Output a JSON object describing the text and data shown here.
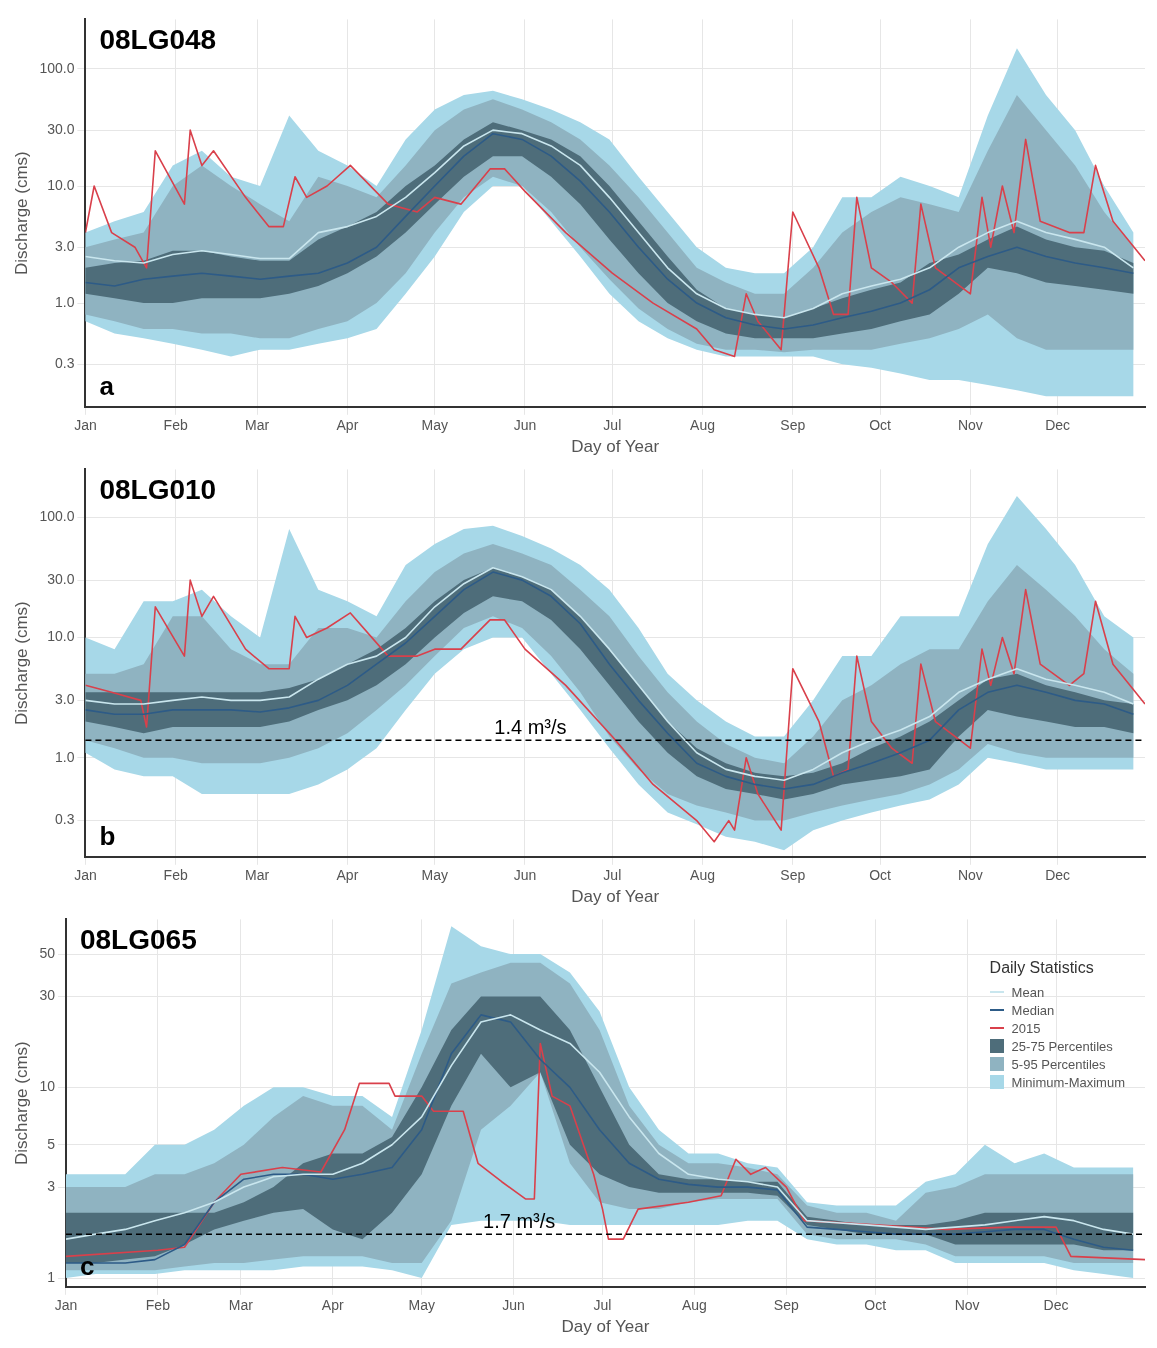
{
  "chart_data": [
    {
      "type": "line",
      "title": "08LG048",
      "xlabel": "Day of Year",
      "ylabel": "Discharge (cms)",
      "annotations": [
        "a"
      ],
      "log": "y",
      "grid": true,
      "ylim": [
        0.13,
        265
      ],
      "yticks": [
        {
          "value": 0.3,
          "label": "0.3"
        },
        {
          "value": 1,
          "label": "1.0"
        },
        {
          "value": 3,
          "label": "3.0"
        },
        {
          "value": 10,
          "label": "10.0"
        },
        {
          "value": 30,
          "label": "30.0"
        },
        {
          "value": 100,
          "label": "100.0"
        }
      ],
      "xlim": [
        "--01-01",
        "--12-31"
      ],
      "xticks": [
        {
          "value": "--01-01",
          "label": "Jan"
        },
        {
          "value": "--02-01",
          "label": "Feb"
        },
        {
          "value": "--03-01",
          "label": "Mar"
        },
        {
          "value": "--04-01",
          "label": "Apr"
        },
        {
          "value": "--05-01",
          "label": "May"
        },
        {
          "value": "--06-01",
          "label": "Jun"
        },
        {
          "value": "--07-01",
          "label": "Jul"
        },
        {
          "value": "--08-01",
          "label": "Aug"
        },
        {
          "value": "--09-01",
          "label": "Sep"
        },
        {
          "value": "--10-01",
          "label": "Oct"
        },
        {
          "value": "--11-01",
          "label": "Nov"
        },
        {
          "value": "--12-01",
          "label": "Dec"
        }
      ],
      "x": [
        "--01-01",
        "--01-11",
        "--01-21",
        "--01-31",
        "--02-10",
        "--02-20",
        "--03-02",
        "--03-12",
        "--03-22",
        "--04-01",
        "--04-11",
        "--04-21",
        "--05-01",
        "--05-11",
        "--05-21",
        "--05-31",
        "--06-10",
        "--06-20",
        "--06-30",
        "--07-10",
        "--07-20",
        "--07-30",
        "--08-09",
        "--08-19",
        "--08-29",
        "--09-08",
        "--09-18",
        "--09-28",
        "--10-08",
        "--10-18",
        "--10-28",
        "--11-07",
        "--11-17",
        "--11-27",
        "--12-07",
        "--12-17",
        "--12-27"
      ],
      "series": [
        {
          "type": "line",
          "color": "#c9e6ee",
          "values": [
            2.5,
            2.3,
            2.2,
            2.6,
            2.8,
            2.6,
            2.4,
            2.4,
            4,
            4.5,
            5.5,
            8,
            13,
            22,
            30,
            28,
            22,
            15,
            8,
            4,
            2,
            1.2,
            0.9,
            0.8,
            0.75,
            0.9,
            1.2,
            1.4,
            1.6,
            2,
            3,
            4,
            5,
            4,
            3.5,
            3,
            2
          ]
        },
        {
          "type": "line",
          "color": "#2d5b87",
          "values": [
            1.5,
            1.4,
            1.6,
            1.7,
            1.8,
            1.7,
            1.6,
            1.7,
            1.8,
            2.2,
            3,
            5.5,
            10,
            18,
            28,
            25,
            18,
            11,
            6,
            3,
            1.6,
            1,
            0.75,
            0.65,
            0.6,
            0.65,
            0.75,
            0.85,
            1,
            1.3,
            2,
            2.5,
            3,
            2.5,
            2.2,
            2,
            1.8
          ]
        },
        {
          "type": "line",
          "color": "#d9404b",
          "x": [
            "--01-01",
            "--01-04",
            "--01-10",
            "--01-18",
            "--01-22",
            "--01-25",
            "--02-04",
            "--02-06",
            "--02-10",
            "--02-14",
            "--02-25",
            "--03-05",
            "--03-10",
            "--03-14",
            "--03-18",
            "--03-25",
            "--04-02",
            "--04-15",
            "--04-25",
            "--05-01",
            "--05-10",
            "--05-20",
            "--05-25",
            "--06-01",
            "--06-15",
            "--07-01",
            "--07-15",
            "--07-30",
            "--08-05",
            "--08-12",
            "--08-16",
            "--08-20",
            "--08-28",
            "--09-01",
            "--09-10",
            "--09-15",
            "--09-20",
            "--09-23",
            "--09-28",
            "--10-05",
            "--10-12",
            "--10-15",
            "--10-20",
            "--11-01",
            "--11-05",
            "--11-08",
            "--11-12",
            "--11-16",
            "--11-20",
            "--11-25",
            "--12-05",
            "--12-10",
            "--12-14",
            "--12-20",
            "--12-31"
          ],
          "values": [
            4,
            10,
            4,
            3,
            2,
            20,
            7,
            30,
            15,
            20,
            8,
            4.5,
            4.5,
            12,
            8,
            10,
            15,
            7,
            6,
            8,
            7,
            14,
            14,
            9,
            4,
            1.8,
            1,
            0.6,
            0.4,
            0.35,
            1.2,
            0.7,
            0.4,
            6,
            2,
            0.8,
            0.8,
            8,
            2,
            1.5,
            1,
            7,
            2,
            1.2,
            8,
            3,
            10,
            4,
            25,
            5,
            4,
            4,
            15,
            5,
            2.3
          ]
        },
        {
          "type": "area",
          "color": "#4e6d7a",
          "values": [
            null,
            null,
            null,
            null,
            null,
            null,
            null,
            null,
            null,
            null,
            null,
            null,
            null,
            null,
            null,
            null,
            null,
            null,
            null,
            null,
            null,
            null,
            null,
            null,
            null,
            null,
            null,
            null,
            null,
            null,
            null,
            null,
            null,
            null,
            null,
            null,
            null
          ],
          "upper": [
            2,
            2.2,
            2.3,
            2.8,
            2.8,
            2.5,
            2.3,
            2.3,
            3.5,
            4.5,
            6,
            10,
            15,
            25,
            35,
            30,
            25,
            18,
            10,
            5,
            2.5,
            1.3,
            0.9,
            0.8,
            0.75,
            0.9,
            1.1,
            1.3,
            1.5,
            2.2,
            2.6,
            3.5,
            4.5,
            3.5,
            3,
            2.8,
            2.2
          ],
          "lower": [
            1.2,
            1.1,
            1,
            1,
            1.1,
            1.1,
            1.1,
            1.2,
            1.4,
            1.8,
            2.5,
            4,
            7,
            12,
            18,
            18,
            12,
            7,
            3.5,
            1.8,
            1,
            0.7,
            0.55,
            0.5,
            0.5,
            0.5,
            0.55,
            0.6,
            0.7,
            0.8,
            1.2,
            2,
            1.8,
            1.5,
            1.4,
            1.3,
            1.2
          ]
        },
        {
          "type": "area",
          "color": "#8fb3c1",
          "values": [
            null,
            null,
            null,
            null,
            null,
            null,
            null,
            null,
            null,
            null,
            null,
            null,
            null,
            null,
            null,
            null,
            null,
            null,
            null,
            null,
            null,
            null,
            null,
            null,
            null,
            null,
            null,
            null,
            null,
            null,
            null,
            null,
            null,
            null,
            null,
            null,
            null
          ],
          "upper": [
            3,
            3.5,
            4,
            10,
            15,
            10,
            7,
            5,
            12,
            10,
            8,
            15,
            30,
            45,
            55,
            45,
            35,
            25,
            15,
            8,
            4,
            2,
            1.5,
            1.2,
            1.2,
            2,
            4,
            6,
            8,
            7,
            6,
            20,
            60,
            30,
            15,
            6,
            3
          ],
          "lower": [
            0.8,
            0.7,
            0.6,
            0.6,
            0.55,
            0.55,
            0.5,
            0.5,
            0.6,
            0.7,
            1,
            1.8,
            4,
            8,
            12,
            10,
            6,
            3,
            1.6,
            0.9,
            0.6,
            0.45,
            0.4,
            0.4,
            0.38,
            0.4,
            0.4,
            0.4,
            0.45,
            0.5,
            0.6,
            0.8,
            0.5,
            0.4,
            0.4,
            0.4,
            0.4
          ]
        },
        {
          "type": "area",
          "color": "#a7d8e8",
          "values": [
            null,
            null,
            null,
            null,
            null,
            null,
            null,
            null,
            null,
            null,
            null,
            null,
            null,
            null,
            null,
            null,
            null,
            null,
            null,
            null,
            null,
            null,
            null,
            null,
            null,
            null,
            null,
            null,
            null,
            null,
            null,
            null,
            null,
            null,
            null,
            null,
            null
          ],
          "upper": [
            4,
            5,
            6,
            15,
            20,
            12,
            10,
            40,
            20,
            15,
            10,
            25,
            45,
            60,
            65,
            55,
            45,
            35,
            25,
            12,
            6,
            3,
            2,
            1.8,
            1.8,
            3,
            8,
            8,
            12,
            10,
            8,
            40,
            150,
            60,
            30,
            10,
            4
          ],
          "lower": [
            0.7,
            0.55,
            0.5,
            0.45,
            0.4,
            0.35,
            0.4,
            0.4,
            0.45,
            0.5,
            0.6,
            1.2,
            2.5,
            6,
            10,
            10,
            5,
            2.5,
            1.2,
            0.7,
            0.5,
            0.4,
            0.35,
            0.35,
            0.35,
            0.35,
            0.3,
            0.28,
            0.25,
            0.22,
            0.22,
            0.2,
            0.18,
            0.16,
            0.16,
            0.16,
            0.16
          ]
        }
      ]
    },
    {
      "type": "line",
      "title": "08LG010",
      "xlabel": "Day of Year",
      "ylabel": "Discharge (cms)",
      "annotations": [
        "b"
      ],
      "log": "y",
      "grid": true,
      "ylim": [
        0.15,
        250
      ],
      "yticks": [
        {
          "value": 0.3,
          "label": "0.3"
        },
        {
          "value": 1,
          "label": "1.0"
        },
        {
          "value": 3,
          "label": "3.0"
        },
        {
          "value": 10,
          "label": "10.0"
        },
        {
          "value": 30,
          "label": "30.0"
        },
        {
          "value": 100,
          "label": "100.0"
        }
      ],
      "xlim": [
        "--01-01",
        "--12-31"
      ],
      "xticks": [
        {
          "value": "--01-01",
          "label": "Jan"
        },
        {
          "value": "--02-01",
          "label": "Feb"
        },
        {
          "value": "--03-01",
          "label": "Mar"
        },
        {
          "value": "--04-01",
          "label": "Apr"
        },
        {
          "value": "--05-01",
          "label": "May"
        },
        {
          "value": "--06-01",
          "label": "Jun"
        },
        {
          "value": "--07-01",
          "label": "Jul"
        },
        {
          "value": "--08-01",
          "label": "Aug"
        },
        {
          "value": "--09-01",
          "label": "Sep"
        },
        {
          "value": "--10-01",
          "label": "Oct"
        },
        {
          "value": "--11-01",
          "label": "Nov"
        },
        {
          "value": "--12-01",
          "label": "Dec"
        }
      ],
      "ref_lines": [
        {
          "axis": "y",
          "value": 1.4,
          "label": "1.4 m³/s",
          "color": "#000000",
          "line_style": "dashed"
        }
      ],
      "x": [
        "--01-01",
        "--01-11",
        "--01-21",
        "--01-31",
        "--02-10",
        "--02-20",
        "--03-02",
        "--03-12",
        "--03-22",
        "--04-01",
        "--04-11",
        "--04-21",
        "--05-01",
        "--05-11",
        "--05-21",
        "--05-31",
        "--06-10",
        "--06-20",
        "--06-30",
        "--07-10",
        "--07-20",
        "--07-30",
        "--08-09",
        "--08-19",
        "--08-29",
        "--09-08",
        "--09-18",
        "--09-28",
        "--10-08",
        "--10-18",
        "--10-28",
        "--11-07",
        "--11-17",
        "--11-27",
        "--12-07",
        "--12-17",
        "--12-27"
      ],
      "series": [
        {
          "type": "line",
          "color": "#c9e6ee",
          "values": [
            3,
            2.8,
            2.8,
            3,
            3.2,
            3,
            3,
            3.2,
            4.5,
            6,
            7,
            10,
            18,
            28,
            38,
            32,
            25,
            15,
            8,
            4,
            2,
            1.1,
            0.8,
            0.7,
            0.65,
            0.8,
            1.1,
            1.4,
            1.7,
            2.2,
            3.5,
            4.5,
            5.5,
            4.5,
            4,
            3.5,
            2.8
          ]
        },
        {
          "type": "line",
          "color": "#2d5b87",
          "values": [
            2.5,
            2.3,
            2.3,
            2.5,
            2.5,
            2.5,
            2.4,
            2.6,
            3,
            4,
            6,
            9,
            15,
            25,
            35,
            30,
            22,
            13,
            6,
            3,
            1.6,
            0.9,
            0.7,
            0.6,
            0.55,
            0.6,
            0.75,
            0.9,
            1.1,
            1.4,
            2.5,
            3.5,
            4,
            3.5,
            3,
            2.8,
            2.3
          ]
        },
        {
          "type": "line",
          "color": "#d9404b",
          "x": [
            "--01-01",
            "--01-10",
            "--01-20",
            "--01-22",
            "--01-25",
            "--02-04",
            "--02-06",
            "--02-10",
            "--02-14",
            "--02-25",
            "--03-05",
            "--03-12",
            "--03-14",
            "--03-18",
            "--03-25",
            "--04-02",
            "--04-15",
            "--04-25",
            "--05-01",
            "--05-10",
            "--05-20",
            "--05-25",
            "--06-01",
            "--06-15",
            "--07-01",
            "--07-15",
            "--07-30",
            "--08-05",
            "--08-10",
            "--08-12",
            "--08-16",
            "--08-20",
            "--08-28",
            "--09-01",
            "--09-10",
            "--09-15",
            "--09-20",
            "--09-23",
            "--09-28",
            "--10-05",
            "--10-12",
            "--10-15",
            "--10-20",
            "--11-01",
            "--11-05",
            "--11-08",
            "--11-12",
            "--11-16",
            "--11-20",
            "--11-25",
            "--12-05",
            "--12-10",
            "--12-14",
            "--12-20",
            "--12-31"
          ],
          "values": [
            4,
            3.5,
            3,
            1.8,
            18,
            7,
            30,
            15,
            22,
            8,
            5.5,
            5.5,
            15,
            10,
            12,
            16,
            7,
            7,
            8,
            8,
            14,
            14,
            8,
            4,
            1.5,
            0.6,
            0.3,
            0.2,
            0.3,
            0.25,
            1,
            0.5,
            0.25,
            5.5,
            2,
            0.7,
            0.8,
            7,
            2,
            1.2,
            0.9,
            6,
            2,
            1.2,
            8,
            4,
            10,
            5,
            25,
            6,
            4,
            5,
            20,
            6,
            2.8
          ]
        },
        {
          "type": "area",
          "color": "#4e6d7a",
          "values": [
            null,
            null,
            null,
            null,
            null,
            null,
            null,
            null,
            null,
            null,
            null,
            null,
            null,
            null,
            null,
            null,
            null,
            null,
            null,
            null,
            null,
            null,
            null,
            null,
            null,
            null,
            null,
            null,
            null,
            null,
            null,
            null,
            null,
            null,
            null,
            null,
            null
          ],
          "upper": [
            3.5,
            3.5,
            3.5,
            3.5,
            3.5,
            3.5,
            3.5,
            3.8,
            4.5,
            6,
            8,
            12,
            20,
            30,
            38,
            32,
            25,
            15,
            8,
            4,
            2,
            1.2,
            0.9,
            0.75,
            0.7,
            0.75,
            0.9,
            1.2,
            1.5,
            2,
            3,
            4.5,
            5,
            4,
            3.5,
            3,
            2.8
          ],
          "lower": [
            2,
            1.8,
            1.6,
            1.8,
            1.8,
            1.8,
            1.8,
            2,
            2.5,
            3,
            4,
            6,
            10,
            16,
            22,
            20,
            14,
            8,
            4,
            2,
            1.1,
            0.7,
            0.55,
            0.5,
            0.45,
            0.5,
            0.6,
            0.65,
            0.7,
            0.8,
            1.5,
            2.5,
            2.2,
            2,
            1.8,
            1.8,
            1.6
          ]
        },
        {
          "type": "area",
          "color": "#8fb3c1",
          "values": [
            null,
            null,
            null,
            null,
            null,
            null,
            null,
            null,
            null,
            null,
            null,
            null,
            null,
            null,
            null,
            null,
            null,
            null,
            null,
            null,
            null,
            null,
            null,
            null,
            null,
            null,
            null,
            null,
            null,
            null,
            null,
            null,
            null,
            null,
            null,
            null,
            null
          ],
          "upper": [
            5,
            5,
            6,
            15,
            15,
            8,
            6,
            6,
            12,
            12,
            10,
            20,
            35,
            50,
            60,
            50,
            40,
            25,
            15,
            7,
            3.5,
            2,
            1.3,
            1,
            0.9,
            1.5,
            3,
            4,
            6,
            8,
            8,
            20,
            40,
            25,
            15,
            8,
            5
          ],
          "lower": [
            1.4,
            1.2,
            1,
            1,
            0.9,
            0.9,
            0.9,
            1,
            1.2,
            1.6,
            2.5,
            4,
            7,
            12,
            15,
            12,
            7,
            3.5,
            1.5,
            0.8,
            0.5,
            0.4,
            0.35,
            0.3,
            0.3,
            0.35,
            0.4,
            0.45,
            0.5,
            0.6,
            0.8,
            1.3,
            1.1,
            1,
            1,
            1,
            1
          ]
        },
        {
          "type": "area",
          "color": "#a7d8e8",
          "values": [
            null,
            null,
            null,
            null,
            null,
            null,
            null,
            null,
            null,
            null,
            null,
            null,
            null,
            null,
            null,
            null,
            null,
            null,
            null,
            null,
            null,
            null,
            null,
            null,
            null,
            null,
            null,
            null,
            null,
            null,
            null,
            null,
            null,
            null,
            null,
            null,
            null
          ],
          "upper": [
            10,
            8,
            20,
            20,
            25,
            15,
            10,
            80,
            25,
            20,
            15,
            40,
            60,
            80,
            85,
            70,
            55,
            40,
            25,
            12,
            5,
            3,
            2,
            1.5,
            1.5,
            3,
            7,
            7,
            15,
            15,
            15,
            60,
            150,
            80,
            40,
            15,
            10
          ],
          "lower": [
            1.1,
            0.8,
            0.7,
            0.7,
            0.5,
            0.5,
            0.5,
            0.5,
            0.6,
            0.8,
            1.2,
            2.5,
            5,
            8,
            10,
            10,
            5,
            2.5,
            1.2,
            0.6,
            0.35,
            0.28,
            0.22,
            0.2,
            0.17,
            0.25,
            0.3,
            0.35,
            0.4,
            0.45,
            0.6,
            1,
            0.9,
            0.8,
            0.8,
            0.8,
            0.8
          ]
        }
      ]
    },
    {
      "type": "line",
      "title": "08LG065",
      "xlabel": "Day of Year",
      "ylabel": "Discharge (cms)",
      "annotations": [
        "c"
      ],
      "log": "y",
      "grid": true,
      "ylim": [
        0.9,
        76
      ],
      "yticks": [
        1,
        3,
        5,
        10,
        30,
        50
      ],
      "xlim": [
        "--01-01",
        "--12-31"
      ],
      "xticks": [
        {
          "value": "--01-01",
          "label": "Jan"
        },
        {
          "value": "--02-01",
          "label": "Feb"
        },
        {
          "value": "--03-01",
          "label": "Mar"
        },
        {
          "value": "--04-01",
          "label": "Apr"
        },
        {
          "value": "--05-01",
          "label": "May"
        },
        {
          "value": "--06-01",
          "label": "Jun"
        },
        {
          "value": "--07-01",
          "label": "Jul"
        },
        {
          "value": "--08-01",
          "label": "Aug"
        },
        {
          "value": "--09-01",
          "label": "Sep"
        },
        {
          "value": "--10-01",
          "label": "Oct"
        },
        {
          "value": "--11-01",
          "label": "Nov"
        },
        {
          "value": "--12-01",
          "label": "Dec"
        }
      ],
      "ref_lines": [
        {
          "axis": "y",
          "value": 1.7,
          "label": "1.7 m³/s",
          "color": "#000000",
          "line_style": "dashed"
        }
      ],
      "legend": "top right",
      "legend_title": "Daily Statistics",
      "x": [
        "--01-01",
        "--01-11",
        "--01-21",
        "--01-31",
        "--02-10",
        "--02-20",
        "--03-02",
        "--03-12",
        "--03-22",
        "--04-01",
        "--04-11",
        "--04-21",
        "--05-01",
        "--05-11",
        "--05-21",
        "--05-31",
        "--06-10",
        "--06-20",
        "--06-30",
        "--07-10",
        "--07-20",
        "--07-30",
        "--08-09",
        "--08-19",
        "--08-29",
        "--09-08",
        "--09-18",
        "--09-28",
        "--10-08",
        "--10-18",
        "--10-28",
        "--11-07",
        "--11-17",
        "--11-27",
        "--12-07",
        "--12-17",
        "--12-27"
      ],
      "series": [
        {
          "name": "Mean",
          "type": "line",
          "color": "#c9e6ee",
          "values": [
            1.6,
            1.7,
            1.8,
            2,
            2.2,
            2.5,
            3,
            3.4,
            3.5,
            3.5,
            4,
            5,
            7,
            13,
            22,
            24,
            20,
            17,
            12,
            7,
            4.5,
            3.5,
            3.3,
            3.2,
            3,
            2,
            1.95,
            1.9,
            1.85,
            1.8,
            1.85,
            1.9,
            2,
            2.1,
            2,
            1.8,
            1.7
          ]
        },
        {
          "name": "Median",
          "type": "line",
          "color": "#2d5b87",
          "values": [
            1.2,
            1.2,
            1.2,
            1.25,
            1.5,
            2.5,
            3.3,
            3.5,
            3.5,
            3.3,
            3.5,
            3.8,
            6,
            15,
            24,
            22,
            14,
            10,
            6,
            4,
            3.3,
            3.1,
            3,
            3,
            2.9,
            1.85,
            1.8,
            1.75,
            1.7,
            1.7,
            1.7,
            1.75,
            1.8,
            1.8,
            1.6,
            1.45,
            1.4
          ]
        },
        {
          "name": "2015",
          "type": "line",
          "color": "#d9404b",
          "x": [
            "--01-01",
            "--02-01",
            "--02-10",
            "--02-20",
            "--03-01",
            "--03-15",
            "--03-28",
            "--04-05",
            "--04-10",
            "--04-20",
            "--04-22",
            "--05-01",
            "--05-05",
            "--05-15",
            "--05-20",
            "--05-28",
            "--06-05",
            "--06-08",
            "--06-10",
            "--06-14",
            "--06-20",
            "--06-28",
            "--07-01",
            "--07-03",
            "--07-08",
            "--07-13",
            "--07-30",
            "--08-10",
            "--08-15",
            "--08-20",
            "--08-25",
            "--09-01",
            "--09-07",
            "--10-01",
            "--10-25",
            "--11-15",
            "--12-01",
            "--12-06",
            "--12-31"
          ],
          "values": [
            1.3,
            1.4,
            1.45,
            2.5,
            3.5,
            3.8,
            3.6,
            6,
            10.5,
            10.5,
            9,
            9,
            7.5,
            7.5,
            4,
            3.2,
            2.6,
            2.6,
            17,
            9,
            8,
            3.5,
            2.3,
            1.6,
            1.6,
            2.3,
            2.5,
            2.7,
            4.2,
            3.5,
            3.8,
            3,
            2,
            1.9,
            1.8,
            1.85,
            1.85,
            1.3,
            1.25
          ]
        },
        {
          "name": "25-75 Percentiles",
          "type": "area",
          "color": "#4e6d7a",
          "values": [
            null,
            null,
            null,
            null,
            null,
            null,
            null,
            null,
            null,
            null,
            null,
            null,
            null,
            null,
            null,
            null,
            null,
            null,
            null,
            null,
            null,
            null,
            null,
            null,
            null,
            null,
            null,
            null,
            null,
            null,
            null,
            null,
            null,
            null,
            null,
            null,
            null
          ],
          "upper": [
            2.2,
            2.2,
            2.2,
            2.2,
            2.2,
            2.2,
            2.5,
            3,
            4,
            4.5,
            4.5,
            5.5,
            10,
            20,
            30,
            30,
            30,
            20,
            10,
            5,
            3.5,
            3.3,
            3.3,
            3.2,
            3.2,
            2.1,
            2,
            1.9,
            1.9,
            1.9,
            2,
            2.2,
            2.2,
            2.2,
            2.2,
            2.2,
            2.2
          ],
          "lower": [
            1.2,
            1.2,
            1.25,
            1.3,
            1.5,
            1.8,
            2,
            2.2,
            2.3,
            1.8,
            1.6,
            2.2,
            3.5,
            8,
            15,
            10,
            12,
            5,
            3.5,
            3,
            2.8,
            2.8,
            2.8,
            2.8,
            2.7,
            1.9,
            1.8,
            1.7,
            1.7,
            1.7,
            1.5,
            1.5,
            1.5,
            1.5,
            1.5,
            1.4,
            1.4
          ]
        },
        {
          "name": "5-95 Percentiles",
          "type": "area",
          "color": "#8fb3c1",
          "values": [
            null,
            null,
            null,
            null,
            null,
            null,
            null,
            null,
            null,
            null,
            null,
            null,
            null,
            null,
            null,
            null,
            null,
            null,
            null,
            null,
            null,
            null,
            null,
            null,
            null,
            null,
            null,
            null,
            null,
            null,
            null,
            null,
            null,
            null,
            null,
            null,
            null
          ],
          "upper": [
            3,
            3,
            3,
            3.5,
            3.5,
            4,
            5,
            7,
            9,
            8,
            8,
            6,
            15,
            35,
            40,
            45,
            45,
            35,
            20,
            8,
            5,
            4,
            4,
            3.8,
            3.5,
            2.4,
            2.2,
            2.2,
            2,
            2.8,
            3,
            3.5,
            3.5,
            3.5,
            3.5,
            3.5,
            3.5
          ],
          "lower": [
            1.1,
            1.1,
            1.1,
            1.1,
            1.15,
            1.2,
            1.2,
            1.25,
            1.3,
            1.3,
            1.3,
            1.2,
            1.2,
            2,
            6,
            8,
            12,
            4,
            2.5,
            2.3,
            2.3,
            2.5,
            2.6,
            2.6,
            2.6,
            1.7,
            1.6,
            1.6,
            1.6,
            1.5,
            1.3,
            1.3,
            1.3,
            1.3,
            1.2,
            1.2,
            1.2
          ]
        },
        {
          "name": "Minimum-Maximum",
          "type": "area",
          "color": "#a7d8e8",
          "values": [
            null,
            null,
            null,
            null,
            null,
            null,
            null,
            null,
            null,
            null,
            null,
            null,
            null,
            null,
            null,
            null,
            null,
            null,
            null,
            null,
            null,
            null,
            null,
            null,
            null,
            null,
            null,
            null,
            null,
            null,
            null,
            null,
            null,
            null,
            null,
            null,
            null
          ],
          "upper": [
            3.5,
            3.5,
            3.5,
            5,
            5,
            6,
            8,
            10,
            10,
            9,
            9,
            7,
            20,
            70,
            55,
            50,
            50,
            40,
            25,
            10,
            6,
            4.5,
            4.5,
            4,
            3.8,
            2.5,
            2.4,
            2.4,
            2.4,
            3.2,
            3.5,
            5,
            4,
            4.5,
            3.8,
            3.8,
            3.8
          ],
          "lower": [
            1,
            1.05,
            1.05,
            1.05,
            1.1,
            1.1,
            1.1,
            1.1,
            1.15,
            1.15,
            1.15,
            1.1,
            1,
            1.9,
            2,
            2,
            2,
            1.9,
            1.9,
            1.9,
            1.9,
            1.9,
            1.9,
            2,
            2,
            1.6,
            1.5,
            1.5,
            1.4,
            1.4,
            1.2,
            1.2,
            1.2,
            1.2,
            1.1,
            1.05,
            1
          ]
        }
      ]
    }
  ]
}
